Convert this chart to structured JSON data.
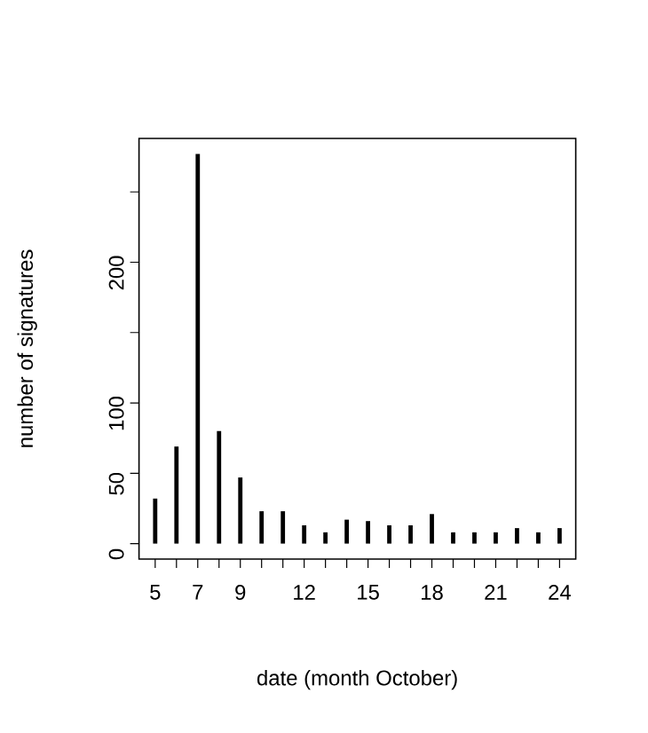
{
  "chart_data": {
    "type": "bar",
    "xlabel": "date (month October)",
    "ylabel": "number of signatures",
    "x": [
      5,
      6,
      7,
      8,
      9,
      10,
      11,
      12,
      13,
      14,
      15,
      16,
      17,
      18,
      19,
      20,
      21,
      22,
      23,
      24
    ],
    "values": [
      32,
      69,
      277,
      80,
      47,
      23,
      23,
      13,
      8,
      17,
      16,
      13,
      13,
      21,
      8,
      8,
      8,
      11,
      8,
      11
    ],
    "color": "#000000",
    "xlim": [
      4.24,
      24.76
    ],
    "ylim": [
      -11,
      288
    ],
    "xticks": [
      5,
      {
        "value": 6,
        "label": null
      },
      7,
      {
        "value": 8,
        "label": null
      },
      9,
      {
        "value": 10,
        "label": null
      },
      {
        "value": 11,
        "label": null
      },
      12,
      {
        "value": 13,
        "label": null
      },
      {
        "value": 14,
        "label": null
      },
      15,
      {
        "value": 16,
        "label": null
      },
      {
        "value": 17,
        "label": null
      },
      18,
      {
        "value": 19,
        "label": null
      },
      {
        "value": 20,
        "label": null
      },
      21,
      {
        "value": 22,
        "label": null
      },
      {
        "value": 23,
        "label": null
      },
      24
    ],
    "yticks": [
      0,
      50,
      100,
      {
        "value": 150,
        "label": null
      },
      200,
      {
        "value": 250,
        "label": null
      }
    ],
    "grid": false
  }
}
